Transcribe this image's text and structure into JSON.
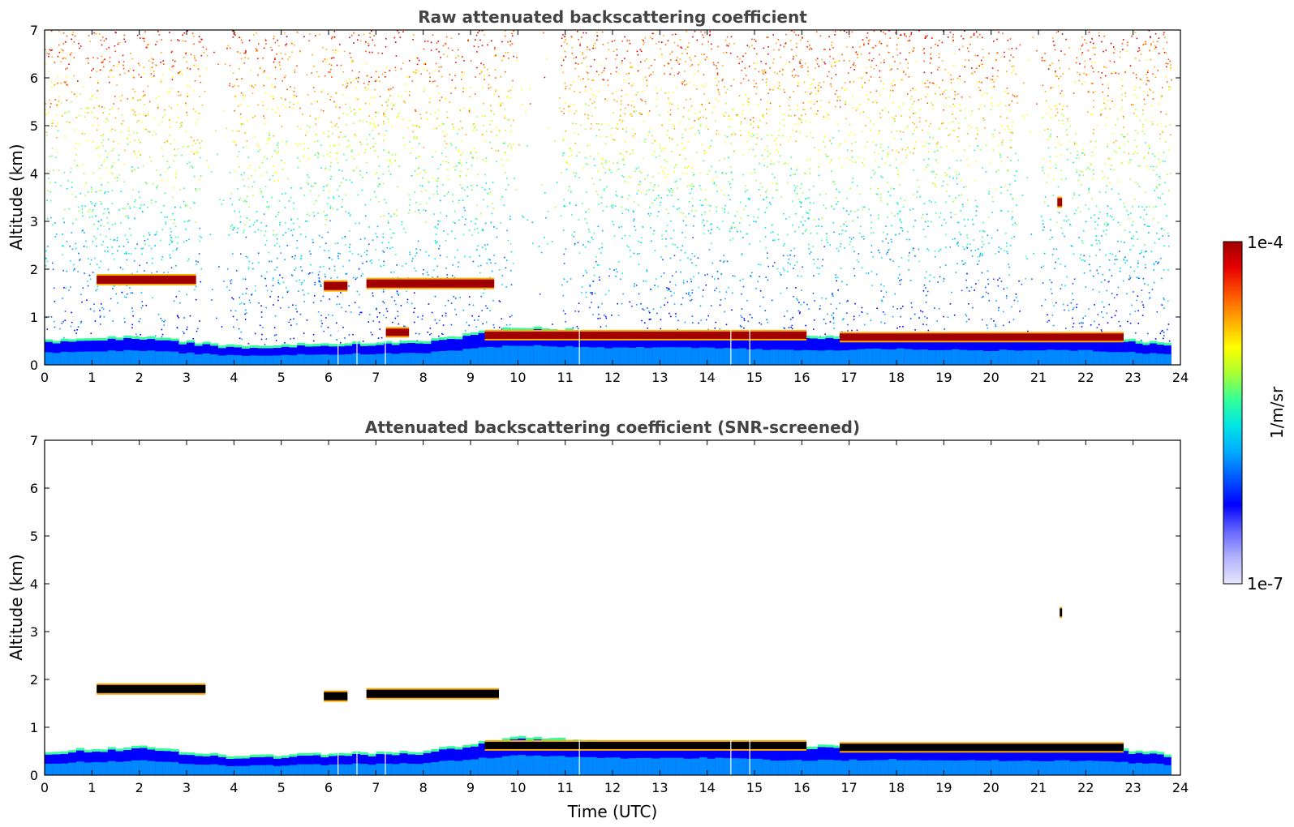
{
  "colormap": [
    "#e6e6ff",
    "#b3b3ff",
    "#6666ff",
    "#0000ff",
    "#0055ff",
    "#00aaff",
    "#00e5e5",
    "#33ff99",
    "#aaff33",
    "#ffff00",
    "#ffaa00",
    "#ff5500",
    "#e60000",
    "#a00000"
  ],
  "colorbar": {
    "top_label": "1e-4",
    "bottom_label": "1e-7",
    "unit_label": "1/m/sr"
  },
  "chart_data": [
    {
      "type": "heatmap",
      "title": "Raw attenuated backscattering coefficient",
      "xlabel": "",
      "ylabel": "Altitude (km)",
      "xlim": [
        0,
        24
      ],
      "ylim": [
        0,
        7
      ],
      "xticks": [
        "0",
        "1",
        "2",
        "3",
        "4",
        "5",
        "6",
        "7",
        "8",
        "9",
        "10",
        "11",
        "12",
        "13",
        "14",
        "15",
        "16",
        "17",
        "18",
        "19",
        "20",
        "21",
        "22",
        "23",
        "24"
      ],
      "yticks": [
        "0",
        "1",
        "2",
        "3",
        "4",
        "5",
        "6",
        "7"
      ],
      "cloud_layers": [
        {
          "x": [
            1.1,
            3.2
          ],
          "y": 1.78
        },
        {
          "x": [
            5.9,
            6.4
          ],
          "y": 1.65
        },
        {
          "x": [
            6.8,
            9.5
          ],
          "y": 1.7
        },
        {
          "x": [
            7.2,
            7.7
          ],
          "y": 0.68
        },
        {
          "x": [
            9.3,
            16.1
          ],
          "y": 0.62
        },
        {
          "x": [
            16.8,
            22.8
          ],
          "y": 0.58
        },
        {
          "x": [
            21.4,
            21.5
          ],
          "y": 3.4
        }
      ],
      "boundary_layer_top_km": [
        {
          "x": 0,
          "y": 0.45
        },
        {
          "x": 2,
          "y": 0.55
        },
        {
          "x": 4,
          "y": 0.35
        },
        {
          "x": 6,
          "y": 0.4
        },
        {
          "x": 8,
          "y": 0.45
        },
        {
          "x": 10,
          "y": 0.75
        },
        {
          "x": 12,
          "y": 0.65
        },
        {
          "x": 14,
          "y": 0.65
        },
        {
          "x": 16,
          "y": 0.55
        },
        {
          "x": 18,
          "y": 0.6
        },
        {
          "x": 20,
          "y": 0.55
        },
        {
          "x": 22,
          "y": 0.55
        },
        {
          "x": 23.8,
          "y": 0.4
        }
      ]
    },
    {
      "type": "heatmap",
      "title": "Attenuated backscattering coefficient (SNR-screened)",
      "xlabel": "Time (UTC)",
      "ylabel": "Altitude (km)",
      "xlim": [
        0,
        24
      ],
      "ylim": [
        0,
        7
      ],
      "xticks": [
        "0",
        "1",
        "2",
        "3",
        "4",
        "5",
        "6",
        "7",
        "8",
        "9",
        "10",
        "11",
        "12",
        "13",
        "14",
        "15",
        "16",
        "17",
        "18",
        "19",
        "20",
        "21",
        "22",
        "23",
        "24"
      ],
      "yticks": [
        "0",
        "1",
        "2",
        "3",
        "4",
        "5",
        "6",
        "7"
      ],
      "cloud_layers": [
        {
          "x": [
            1.1,
            3.4
          ],
          "y": 1.8
        },
        {
          "x": [
            5.9,
            6.4
          ],
          "y": 1.65
        },
        {
          "x": [
            6.8,
            9.6
          ],
          "y": 1.7
        },
        {
          "x": [
            9.3,
            16.1
          ],
          "y": 0.62
        },
        {
          "x": [
            16.8,
            22.8
          ],
          "y": 0.58
        },
        {
          "x": [
            21.45,
            21.5
          ],
          "y": 3.4
        }
      ]
    }
  ]
}
